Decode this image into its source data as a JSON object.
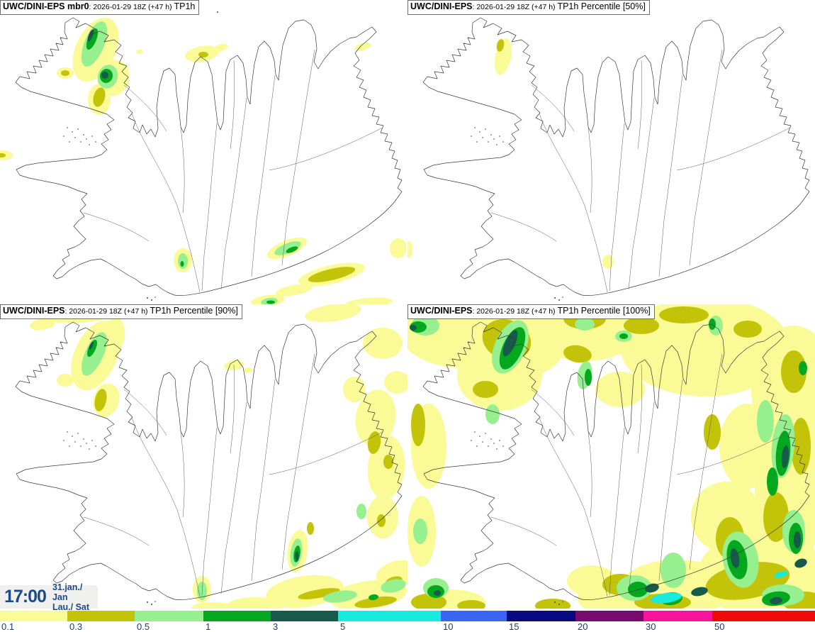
{
  "panels": [
    {
      "model": "UWC/DINI-EPS mbr0",
      "run": ": 2026-01-29 18Z (+47 h) ",
      "param": "TP1h"
    },
    {
      "model": "UWC/DINI-EPS",
      "run": ": 2026-01-29 18Z (+47 h) ",
      "param": "TP1h Percentile [50%]"
    },
    {
      "model": "UWC/DINI-EPS",
      "run": ": 2026-01-29 18Z (+47 h) ",
      "param": "TP1h Percentile [90%]"
    },
    {
      "model": "UWC/DINI-EPS",
      "run": ": 2026-01-29 18Z (+47 h) ",
      "param": "TP1h Percentile [100%]"
    }
  ],
  "clock": {
    "time": "17:00",
    "date": "31.jan./ Jan",
    "weekday": "Lau./ Sat"
  },
  "legend": {
    "labels": [
      "0.1",
      "0.3",
      "0.5",
      "1",
      "3",
      "5",
      "10",
      "15",
      "20",
      "30",
      "50"
    ],
    "colors": [
      "#FAFA96",
      "#C3C30A",
      "#97F08F",
      "#04A81F",
      "#17594A",
      "#16EBDD",
      "#3A65F2",
      "#0A0A80",
      "#7A0B6E",
      "#F7149B",
      "#EF0A0C"
    ],
    "widths": [
      95,
      95,
      97,
      95,
      95,
      145,
      93,
      97,
      96,
      97,
      145
    ],
    "label_color": "#1c3d7c"
  }
}
